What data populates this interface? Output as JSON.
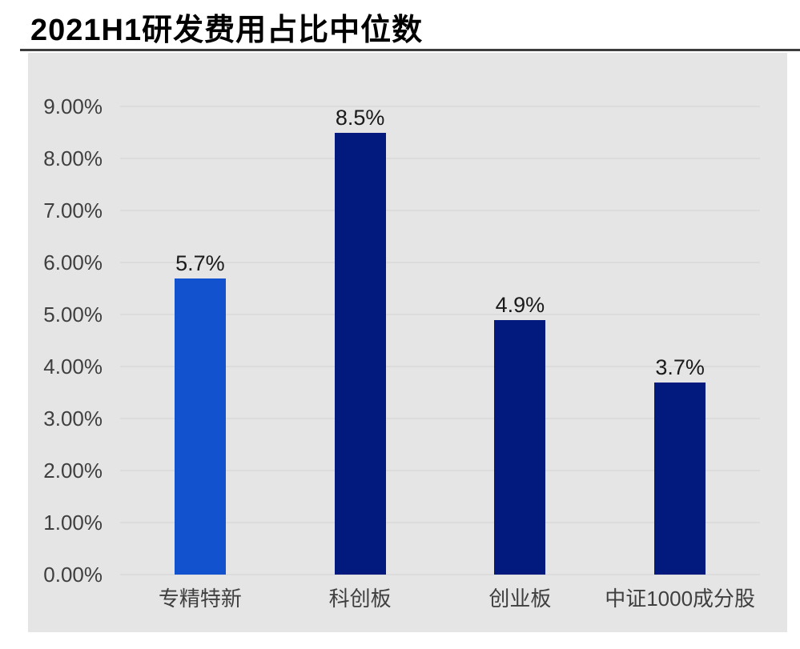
{
  "title": "2021H1研发费用占比中位数",
  "colors": {
    "page_background": "#ffffff",
    "panel_background": "#e5e5e5",
    "gridline": "#dcdcdc",
    "title_rule": "#3d3d3d",
    "title_text": "#000000",
    "axis_text": "#3f3f3f",
    "value_text": "#1a1a1a",
    "highlight_bar": "#1252cf",
    "normal_bar": "#02197d"
  },
  "chart_data": {
    "type": "bar",
    "title": "2021H1研发费用占比中位数",
    "categories": [
      "专精特新",
      "科创板",
      "创业板",
      "中证1000成分股"
    ],
    "values": [
      5.7,
      8.5,
      4.9,
      3.7
    ],
    "data_labels": [
      "5.7%",
      "8.5%",
      "4.9%",
      "3.7%"
    ],
    "bar_colors": [
      "#1252cf",
      "#02197d",
      "#02197d",
      "#02197d"
    ],
    "y_ticks": [
      "9.00%",
      "8.00%",
      "7.00%",
      "6.00%",
      "5.00%",
      "4.00%",
      "3.00%",
      "2.00%",
      "1.00%",
      "0.00%"
    ],
    "xlabel": "",
    "ylabel": "",
    "ylim": [
      0,
      9
    ],
    "unit": "%",
    "grid": true,
    "legend": false
  }
}
